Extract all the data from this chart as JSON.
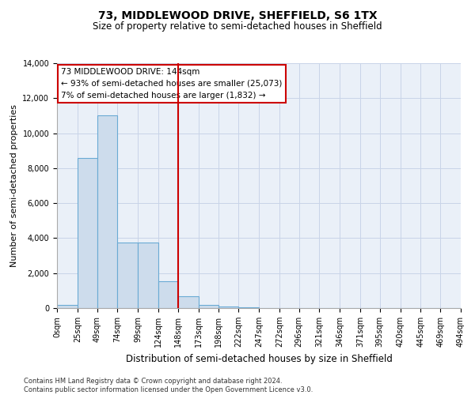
{
  "title": "73, MIDDLEWOOD DRIVE, SHEFFIELD, S6 1TX",
  "subtitle": "Size of property relative to semi-detached houses in Sheffield",
  "xlabel": "Distribution of semi-detached houses by size in Sheffield",
  "ylabel": "Number of semi-detached properties",
  "property_label": "73 MIDDLEWOOD DRIVE: 144sqm",
  "pct_smaller": 93,
  "n_smaller": 25073,
  "pct_larger": 7,
  "n_larger": 1832,
  "footnote": "Contains HM Land Registry data © Crown copyright and database right 2024.\nContains public sector information licensed under the Open Government Licence v3.0.",
  "bin_edges": [
    0,
    25,
    49,
    74,
    99,
    124,
    148,
    173,
    198,
    222,
    247,
    272,
    296,
    321,
    346,
    371,
    395,
    420,
    445,
    469,
    494
  ],
  "bin_labels": [
    "0sqm",
    "25sqm",
    "49sqm",
    "74sqm",
    "99sqm",
    "124sqm",
    "148sqm",
    "173sqm",
    "198sqm",
    "222sqm",
    "247sqm",
    "272sqm",
    "296sqm",
    "321sqm",
    "346sqm",
    "371sqm",
    "395sqm",
    "420sqm",
    "445sqm",
    "469sqm",
    "494sqm"
  ],
  "counts": [
    200,
    8600,
    11000,
    3750,
    3750,
    1550,
    700,
    200,
    100,
    50,
    20,
    10,
    5,
    3,
    1,
    1,
    0,
    0,
    0,
    0
  ],
  "bar_color": "#cddcec",
  "bar_edge_color": "#6aaad4",
  "vline_color": "#cc0000",
  "vline_x": 148,
  "ylim": [
    0,
    14000
  ],
  "yticks": [
    0,
    2000,
    4000,
    6000,
    8000,
    10000,
    12000,
    14000
  ],
  "grid_color": "#c8d4e8",
  "bg_color": "#eaf0f8",
  "annotation_box_color": "#ffffff",
  "annotation_box_edge": "#cc0000",
  "title_fontsize": 10,
  "subtitle_fontsize": 8.5,
  "axis_label_fontsize": 8,
  "tick_fontsize": 7,
  "annotation_fontsize": 7.5
}
